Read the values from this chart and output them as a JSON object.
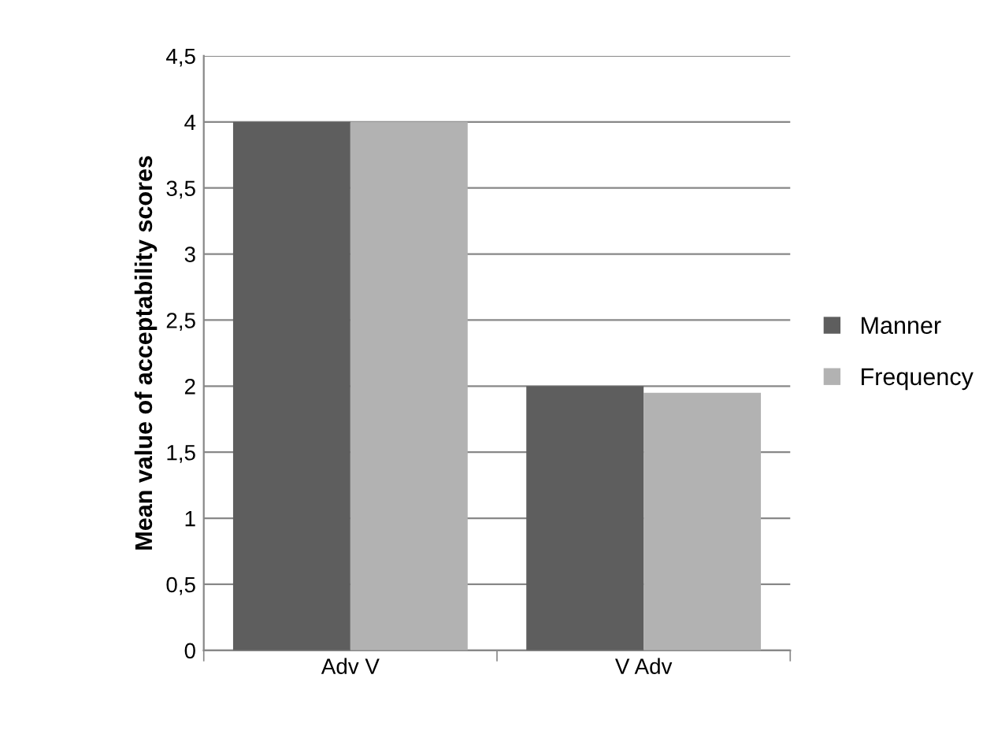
{
  "chart_data": {
    "type": "bar",
    "ylabel": "Mean value of acceptability scores",
    "categories": [
      "Adv V",
      "V Adv"
    ],
    "series": [
      {
        "name": "Manner",
        "color": "#5e5e5e",
        "values": [
          4.0,
          2.0
        ]
      },
      {
        "name": "Frequency",
        "color": "#b2b2b2",
        "values": [
          4.0,
          1.95
        ]
      }
    ],
    "ylim": [
      0,
      4.5
    ],
    "yticks": [
      0,
      {
        "value": 0.5,
        "label": "0,5"
      },
      1,
      {
        "value": 1.5,
        "label": "1,5"
      },
      2,
      {
        "value": 2.5,
        "label": "2,5"
      },
      3,
      {
        "value": 3.5,
        "label": "3,5"
      },
      4,
      {
        "value": 4.5,
        "label": "4,5"
      }
    ],
    "grid": "y",
    "legend": "right"
  }
}
